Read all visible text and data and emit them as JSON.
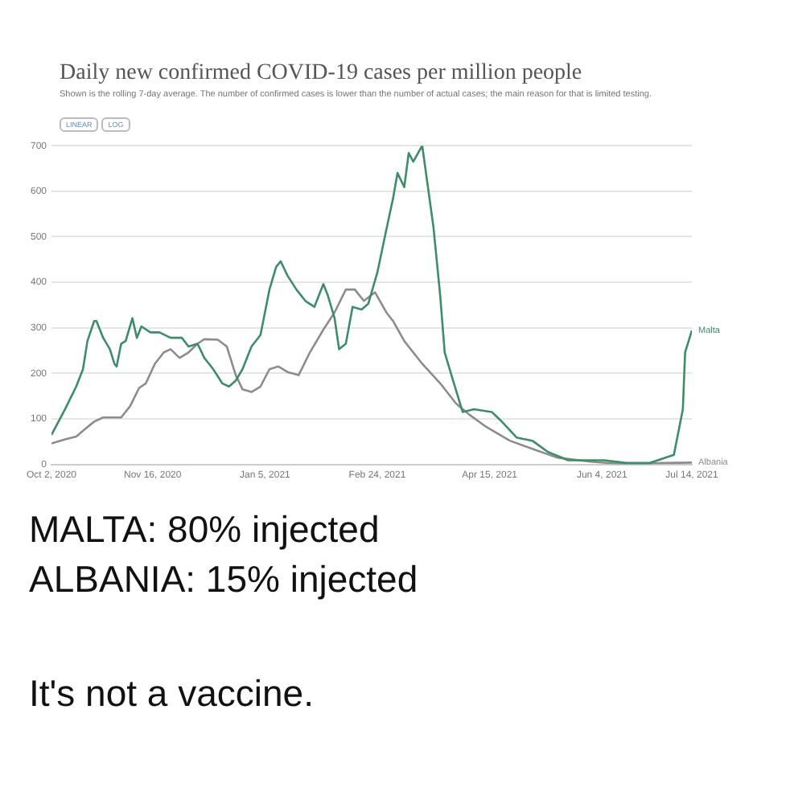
{
  "chart_data": {
    "type": "line",
    "title": "Daily new confirmed COVID-19 cases per million people",
    "subtitle": "Shown is the rolling 7-day average. The number of confirmed cases is lower than the number of actual cases; the main reason for that is limited testing.",
    "annotations": [
      "LINEAR",
      "LOG",
      "MALTA: 80% injected",
      "ALBANIA: 15% injected",
      "It's not a vaccine."
    ],
    "grid": "y",
    "marker": "none",
    "line_style": "solid",
    "xlim": [
      "2020-10-02",
      "2021-07-14"
    ],
    "xticks": [
      {
        "value": "2020-10-02",
        "label": "Oct 2, 2020"
      },
      {
        "value": "2020-11-16",
        "label": "Nov 16, 2020"
      },
      {
        "value": "2021-01-05",
        "label": "Jan 5, 2021"
      },
      {
        "value": "2021-02-24",
        "label": "Feb 24, 2021"
      },
      {
        "value": "2021-04-15",
        "label": "Apr 15, 2021"
      },
      {
        "value": "2021-06-04",
        "label": "Jun 4, 2021"
      },
      {
        "value": "2021-07-14",
        "label": "Jul 14, 2021"
      }
    ],
    "ylim": [
      0,
      700
    ],
    "yticks": [
      0,
      100,
      200,
      300,
      400,
      500,
      600,
      700
    ],
    "series": [
      {
        "name": "Malta",
        "color": "#3d8c6a",
        "x": [
          "2020-10-02",
          "2020-10-08",
          "2020-10-13",
          "2020-10-16",
          "2020-10-18",
          "2020-10-21",
          "2020-10-22",
          "2020-10-25",
          "2020-10-28",
          "2020-10-30",
          "2020-10-31",
          "2020-11-02",
          "2020-11-04",
          "2020-11-07",
          "2020-11-09",
          "2020-11-11",
          "2020-11-15",
          "2020-11-19",
          "2020-11-24",
          "2020-11-29",
          "2020-12-02",
          "2020-12-06",
          "2020-12-09",
          "2020-12-13",
          "2020-12-17",
          "2020-12-20",
          "2020-12-23",
          "2020-12-26",
          "2020-12-30",
          "2021-01-03",
          "2021-01-07",
          "2021-01-10",
          "2021-01-12",
          "2021-01-15",
          "2021-01-19",
          "2021-01-23",
          "2021-01-27",
          "2021-01-31",
          "2021-02-02",
          "2021-02-05",
          "2021-02-07",
          "2021-02-10",
          "2021-02-13",
          "2021-02-17",
          "2021-02-20",
          "2021-02-24",
          "2021-02-28",
          "2021-03-03",
          "2021-03-05",
          "2021-03-08",
          "2021-03-10",
          "2021-03-12",
          "2021-03-16",
          "2021-03-21",
          "2021-03-24",
          "2021-03-26",
          "2021-03-29",
          "2021-04-03",
          "2021-04-08",
          "2021-04-16",
          "2021-04-20",
          "2021-04-27",
          "2021-05-04",
          "2021-05-11",
          "2021-05-20",
          "2021-06-05",
          "2021-06-15",
          "2021-06-25",
          "2021-07-06",
          "2021-07-10",
          "2021-07-11",
          "2021-07-14"
        ],
        "values": [
          65,
          121,
          171,
          209,
          271,
          315,
          315,
          278,
          253,
          221,
          215,
          265,
          271,
          321,
          278,
          303,
          290,
          290,
          278,
          278,
          259,
          265,
          234,
          209,
          178,
          171,
          184,
          209,
          259,
          284,
          384,
          434,
          446,
          415,
          384,
          359,
          346,
          396,
          371,
          321,
          253,
          265,
          346,
          340,
          353,
          421,
          515,
          584,
          640,
          609,
          684,
          665,
          700,
          521,
          371,
          246,
          196,
          115,
          121,
          115,
          96,
          59,
          52,
          27,
          9,
          9,
          3,
          3,
          21,
          121,
          246,
          294
        ]
      },
      {
        "name": "Albania",
        "color": "#8c8c8c",
        "x": [
          "2020-10-02",
          "2020-10-08",
          "2020-10-13",
          "2020-10-17",
          "2020-10-21",
          "2020-10-25",
          "2020-11-02",
          "2020-11-06",
          "2020-11-10",
          "2020-11-13",
          "2020-11-17",
          "2020-11-21",
          "2020-11-24",
          "2020-11-28",
          "2020-12-02",
          "2020-12-06",
          "2020-12-09",
          "2020-12-15",
          "2020-12-19",
          "2020-12-23",
          "2020-12-26",
          "2020-12-30",
          "2021-01-03",
          "2021-01-07",
          "2021-01-11",
          "2021-01-15",
          "2021-01-20",
          "2021-01-25",
          "2021-01-31",
          "2021-02-05",
          "2021-02-10",
          "2021-02-14",
          "2021-02-18",
          "2021-02-23",
          "2021-02-28",
          "2021-03-03",
          "2021-03-08",
          "2021-03-16",
          "2021-03-24",
          "2021-03-31",
          "2021-04-06",
          "2021-04-13",
          "2021-04-24",
          "2021-05-04",
          "2021-05-15",
          "2021-05-30",
          "2021-06-15",
          "2021-07-01",
          "2021-07-14"
        ],
        "values": [
          46,
          55,
          61,
          78,
          94,
          103,
          103,
          128,
          168,
          178,
          221,
          246,
          253,
          234,
          246,
          265,
          275,
          274,
          259,
          196,
          165,
          159,
          171,
          209,
          215,
          203,
          196,
          246,
          296,
          334,
          384,
          384,
          359,
          378,
          334,
          315,
          271,
          221,
          178,
          134,
          109,
          84,
          52,
          34,
          15,
          6,
          0,
          3,
          4
        ]
      }
    ]
  }
}
